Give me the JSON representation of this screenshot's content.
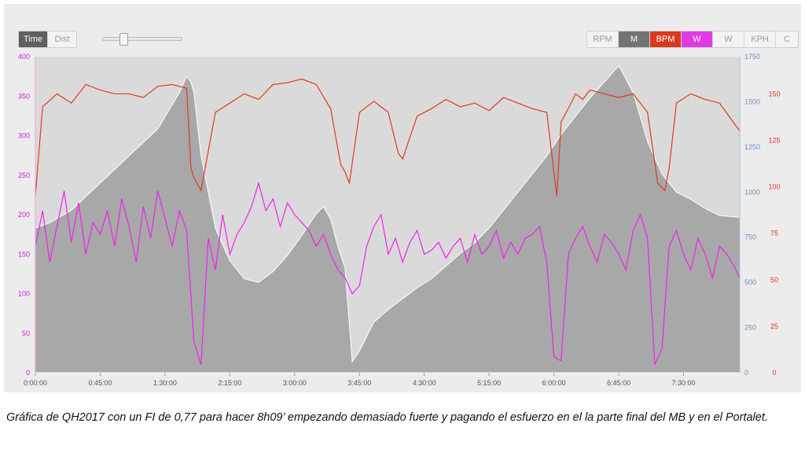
{
  "controls": {
    "time_label": "Time",
    "dist_label": "Dist",
    "metric_buttons": [
      "RPM",
      "M",
      "BPM",
      "W",
      "W",
      "KPH",
      "C"
    ]
  },
  "colors": {
    "power": "#ee22ee",
    "heart_rate": "#e23a1a",
    "elevation_fill": "#a8a8a8",
    "left_axis": "#d21fd2",
    "right_axis_elevation": "#6c92bd",
    "right_axis_hr": "#e23a1a",
    "button_m": "#737373",
    "button_bpm": "#d83a1e",
    "button_w": "#e23ae2"
  },
  "chart_data": {
    "type": "line",
    "x_unit": "h:mm:ss",
    "x_ticks": [
      "0:00:00",
      "0:45:00",
      "1:30:00",
      "2:15:00",
      "3:00:00",
      "3:45:00",
      "4:30:00",
      "5:15:00",
      "6:00:00",
      "6:45:00",
      "7:30:00"
    ],
    "x_range": [
      "0:00:00",
      "8:09:00"
    ],
    "y_left": {
      "ticks": [
        "0",
        "50",
        "100",
        "150",
        "200",
        "250",
        "300",
        "350",
        "400"
      ],
      "range": [
        0,
        400
      ]
    },
    "y_right_elevation": {
      "ticks": [
        "0",
        "250",
        "500",
        "750",
        "1000",
        "1250",
        "1500",
        "1750"
      ],
      "range": [
        0,
        1750
      ]
    },
    "y_right_hr": {
      "ticks": [
        "0",
        "25",
        "50",
        "75",
        "100",
        "125",
        "150"
      ],
      "range": [
        0,
        170
      ]
    },
    "series": [
      {
        "name": "BPM",
        "axis": "right_hr",
        "x_minutes": [
          0,
          5,
          15,
          25,
          35,
          45,
          55,
          65,
          75,
          85,
          95,
          105,
          108,
          110,
          115,
          125,
          135,
          145,
          155,
          165,
          175,
          185,
          195,
          205,
          212,
          215,
          218,
          225,
          235,
          245,
          252,
          255,
          265,
          275,
          285,
          295,
          305,
          315,
          325,
          335,
          345,
          355,
          362,
          365,
          372,
          375,
          380,
          385,
          395,
          405,
          415,
          425,
          432,
          437,
          440,
          445,
          455,
          465,
          475,
          489
        ],
        "values": [
          95,
          143,
          150,
          145,
          155,
          152,
          150,
          150,
          148,
          154,
          155,
          153,
          110,
          105,
          98,
          140,
          145,
          150,
          147,
          155,
          156,
          158,
          155,
          142,
          112,
          108,
          102,
          140,
          146,
          140,
          118,
          115,
          138,
          142,
          147,
          143,
          145,
          141,
          148,
          145,
          142,
          140,
          95,
          135,
          145,
          150,
          147,
          152,
          150,
          148,
          150,
          140,
          102,
          98,
          110,
          145,
          150,
          147,
          145,
          130
        ]
      },
      {
        "name": "Elevation",
        "axis": "right_elevation",
        "x_minutes": [
          0,
          10,
          25,
          45,
          65,
          85,
          100,
          105,
          108,
          110,
          115,
          125,
          135,
          145,
          155,
          165,
          175,
          185,
          195,
          200,
          205,
          210,
          215,
          220,
          225,
          235,
          245,
          255,
          265,
          275,
          285,
          295,
          305,
          315,
          325,
          335,
          345,
          355,
          365,
          375,
          385,
          395,
          405,
          415,
          425,
          435,
          445,
          455,
          465,
          475,
          489
        ],
        "values": [
          800,
          830,
          900,
          1050,
          1200,
          1350,
          1550,
          1640,
          1610,
          1550,
          1200,
          800,
          620,
          520,
          500,
          560,
          650,
          760,
          880,
          920,
          850,
          700,
          580,
          60,
          120,
          280,
          350,
          410,
          470,
          520,
          590,
          660,
          720,
          800,
          900,
          1000,
          1100,
          1200,
          1320,
          1420,
          1520,
          1610,
          1700,
          1550,
          1280,
          1100,
          1000,
          960,
          910,
          870,
          860
        ]
      },
      {
        "name": "W",
        "axis": "left",
        "x_minutes": [
          0,
          5,
          10,
          15,
          20,
          25,
          30,
          35,
          40,
          45,
          50,
          55,
          60,
          65,
          70,
          75,
          80,
          85,
          90,
          95,
          100,
          105,
          110,
          115,
          120,
          125,
          130,
          135,
          140,
          145,
          150,
          155,
          160,
          165,
          170,
          175,
          180,
          185,
          190,
          195,
          200,
          205,
          210,
          215,
          220,
          225,
          230,
          235,
          240,
          245,
          250,
          255,
          260,
          265,
          270,
          275,
          280,
          285,
          290,
          295,
          300,
          305,
          310,
          315,
          320,
          325,
          330,
          335,
          340,
          345,
          350,
          355,
          360,
          365,
          370,
          375,
          380,
          385,
          390,
          395,
          400,
          405,
          410,
          415,
          420,
          425,
          430,
          435,
          440,
          445,
          450,
          455,
          460,
          465,
          470,
          475,
          480,
          485,
          489
        ],
        "values": [
          160,
          205,
          140,
          185,
          230,
          165,
          215,
          150,
          190,
          175,
          205,
          160,
          220,
          185,
          140,
          210,
          170,
          230,
          195,
          160,
          205,
          180,
          40,
          10,
          170,
          130,
          200,
          150,
          175,
          190,
          210,
          240,
          205,
          220,
          185,
          215,
          200,
          190,
          180,
          160,
          175,
          150,
          130,
          120,
          100,
          110,
          160,
          185,
          200,
          150,
          170,
          140,
          165,
          180,
          150,
          155,
          165,
          145,
          160,
          170,
          140,
          175,
          150,
          160,
          180,
          145,
          165,
          150,
          170,
          175,
          185,
          140,
          20,
          15,
          150,
          170,
          185,
          160,
          140,
          175,
          165,
          150,
          130,
          180,
          200,
          170,
          10,
          30,
          160,
          180,
          150,
          130,
          170,
          150,
          120,
          160,
          150,
          135,
          120
        ]
      }
    ]
  },
  "caption": "Gráfica de QH2017 con un FI de 0,77 para hacer 8h09’ empezando demasiado fuerte y pagando el esfuerzo en el la parte final del MB y en el Portalet."
}
